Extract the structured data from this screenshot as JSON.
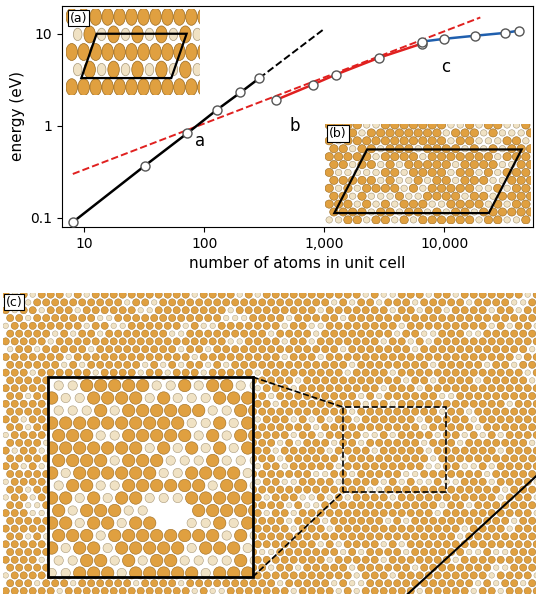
{
  "chart_data": {
    "type": "line",
    "x_label": "number of atoms in unit cell",
    "y_label": "energy (eV)",
    "log": true,
    "xlim": [
      6.5,
      55000
    ],
    "ylim": [
      0.08,
      20
    ],
    "xticks": [
      10,
      100,
      {
        "value": 1000,
        "label": "1,000"
      },
      {
        "value": 10000,
        "label": "10,000"
      }
    ],
    "yticks": [
      0.1,
      1,
      10
    ],
    "panel_labels": [
      "(a)",
      "(b)",
      "(c)"
    ],
    "series": [
      {
        "label": "a",
        "color": "#000000",
        "marker": "o",
        "line_style": "solid",
        "x": [
          8,
          32,
          72,
          128,
          200,
          288
        ],
        "values": [
          0.09,
          0.37,
          0.83,
          1.5,
          2.3,
          3.3
        ]
      },
      {
        "color": "#000000",
        "line_style": "dashed",
        "x": [
          288,
          1000
        ],
        "values": [
          3.3,
          11.3
        ]
      },
      {
        "color": "#e0201f",
        "line_style": "dashed",
        "x": [
          8,
          20000
        ],
        "values": [
          0.3,
          15
        ]
      },
      {
        "label": "b",
        "color": "#e0201f",
        "marker": "o",
        "line_style": "solid",
        "x": [
          392,
          800,
          1250,
          2880,
          6500
        ],
        "values": [
          1.9,
          2.8,
          3.6,
          5.5,
          7.8
        ]
      },
      {
        "label": "c",
        "color": "#1f5fae",
        "marker": "o",
        "line_style": "solid",
        "x": [
          6500,
          10000,
          18000,
          32000,
          42000
        ],
        "values": [
          8.2,
          8.8,
          9.5,
          10.2,
          10.8
        ]
      }
    ]
  }
}
